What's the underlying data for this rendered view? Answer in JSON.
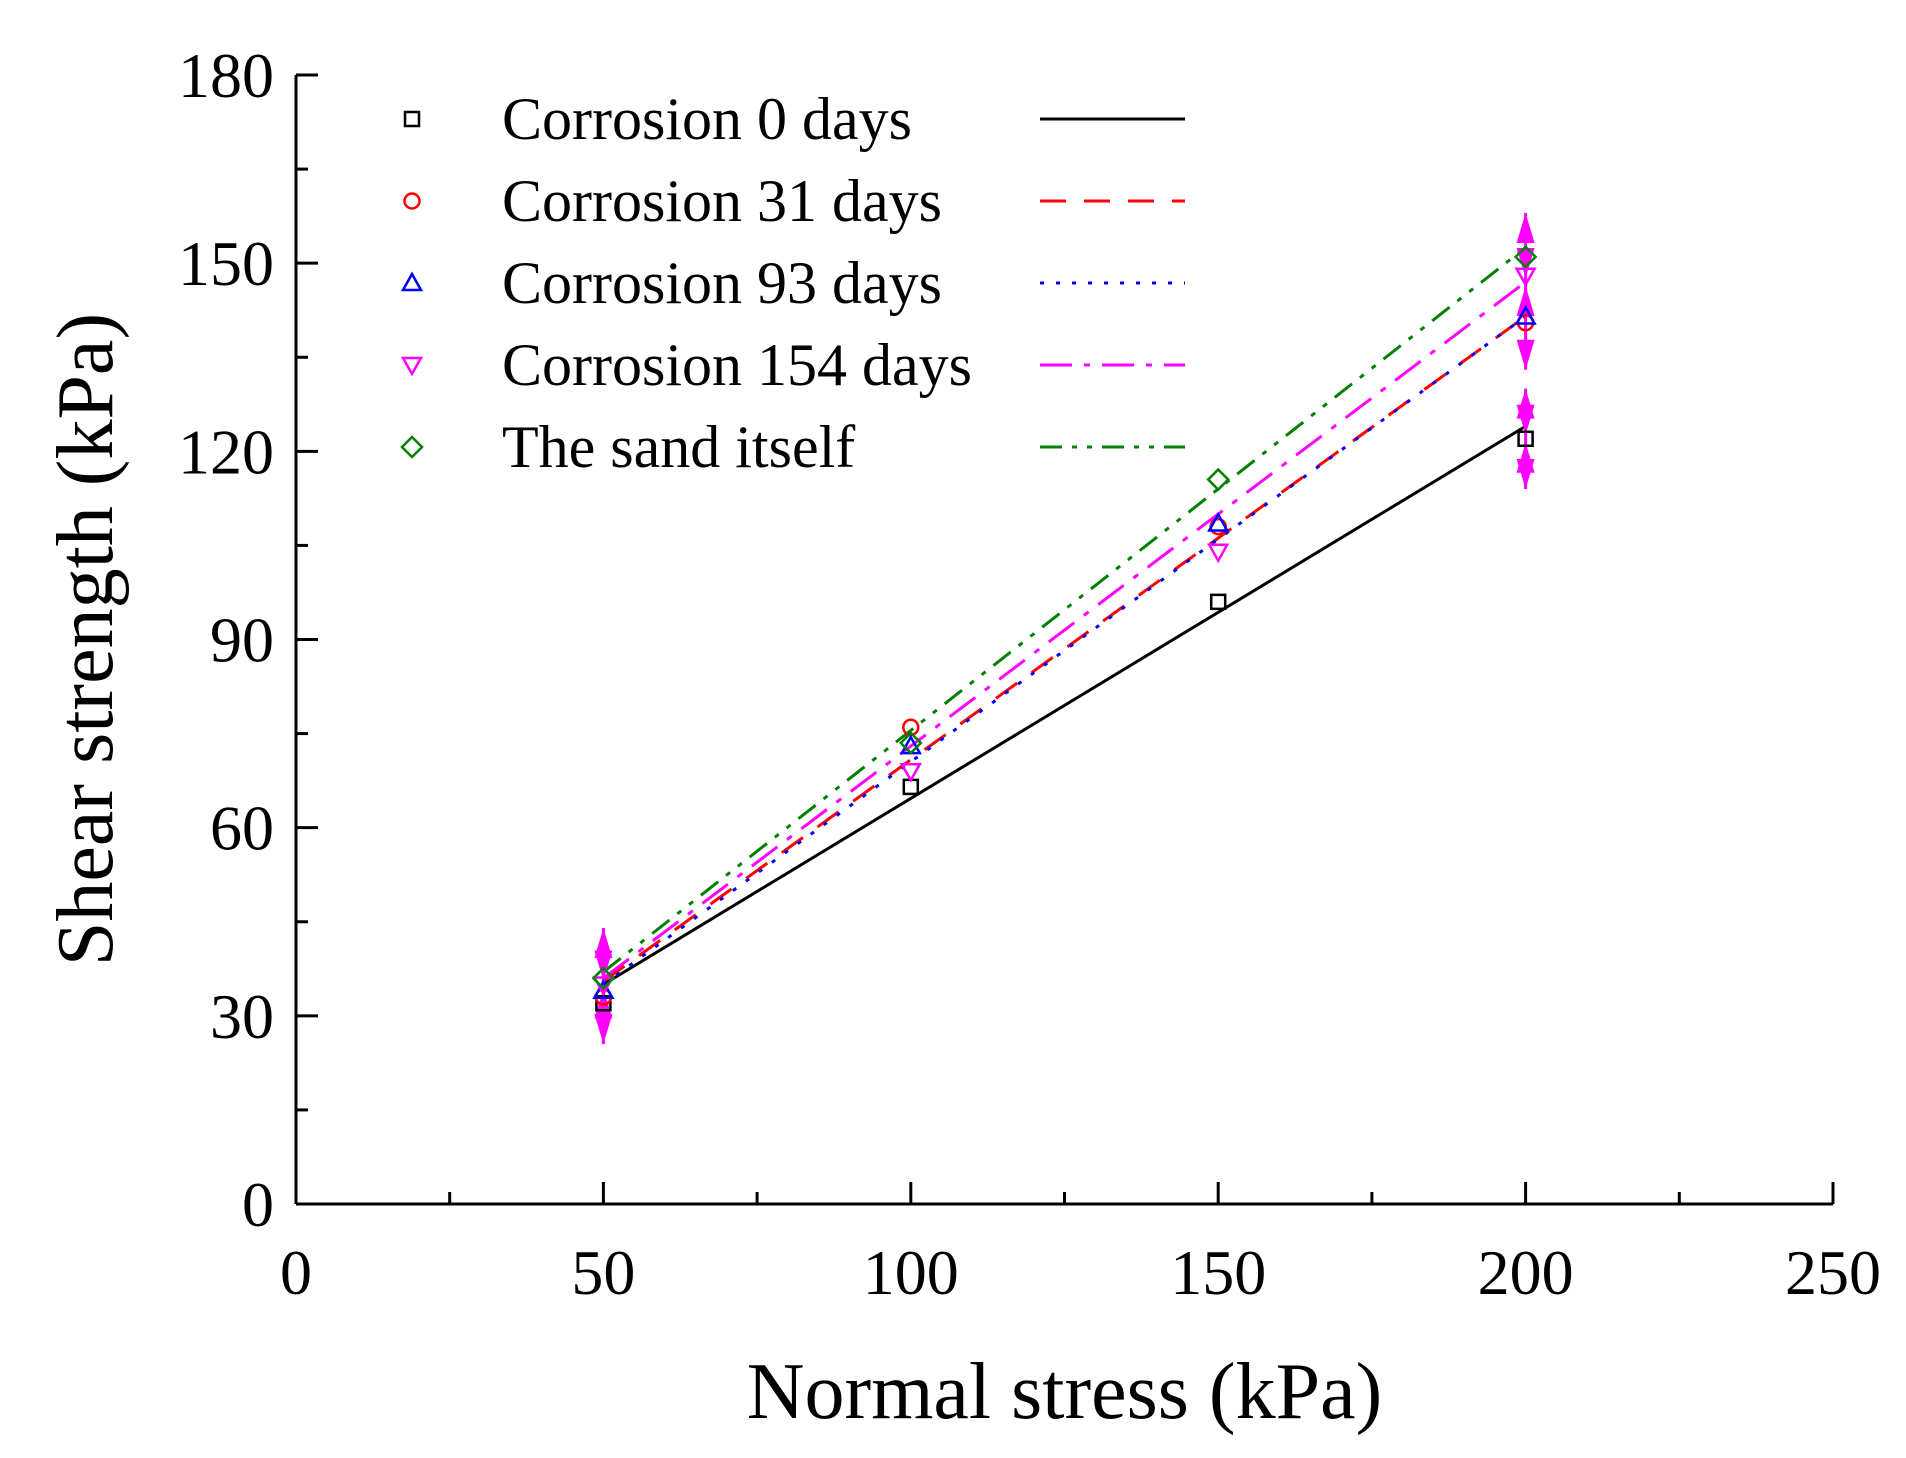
{
  "chart_data": {
    "type": "scatter",
    "title": "",
    "xlabel": "Normal stress (kPa)",
    "ylabel": "Shear strength (kPa)",
    "xlim": [
      0,
      250
    ],
    "ylim": [
      0,
      180
    ],
    "xticks": [
      0,
      50,
      100,
      150,
      200,
      250
    ],
    "yticks": [
      0,
      30,
      60,
      90,
      120,
      150,
      180
    ],
    "xtick_labels": [
      "0",
      "50",
      "100",
      "150",
      "200",
      "250"
    ],
    "ytick_labels": [
      "0",
      "30",
      "60",
      "90",
      "120",
      "150",
      "180"
    ],
    "grid": false,
    "legend_position": "top-left",
    "x": [
      50,
      100,
      150,
      200
    ],
    "series": [
      {
        "name": "Corrosion 0 days",
        "marker": "square",
        "color": "#000000",
        "line_style": "solid",
        "values": [
          32,
          66.5,
          96,
          122
        ],
        "fit": [
          35,
          124
        ]
      },
      {
        "name": "Corrosion 31 days",
        "marker": "circle",
        "color": "#ff0000",
        "line_style": "dashed",
        "values": [
          33,
          76,
          108,
          140.5
        ],
        "fit": [
          35.5,
          141.5
        ]
      },
      {
        "name": "Corrosion 93 days",
        "marker": "triangle-up",
        "color": "#0000ff",
        "line_style": "dotted",
        "values": [
          34,
          73,
          108.5,
          141.5
        ],
        "fit": [
          35,
          141.5
        ]
      },
      {
        "name": "Corrosion 154 days",
        "marker": "triangle-down",
        "color": "#ff00ff",
        "line_style": "dash-dot",
        "values": [
          35,
          69,
          104,
          148
        ],
        "fit": [
          36,
          147
        ]
      },
      {
        "name": "The sand itself",
        "marker": "diamond",
        "color": "#008000",
        "line_style": "dash-dot-dot",
        "values": [
          36,
          73.5,
          115.5,
          151
        ],
        "fit": [
          37,
          152.5
        ]
      }
    ],
    "error_bars": [
      {
        "x": 50,
        "y": 35,
        "low": 25.5,
        "high": 44
      },
      {
        "x": 200,
        "y": 147,
        "low": 133,
        "high": 158
      },
      {
        "x": 200,
        "y": 122,
        "low": 114,
        "high": 130
      }
    ],
    "error_bar_color": "#ff00ff"
  }
}
